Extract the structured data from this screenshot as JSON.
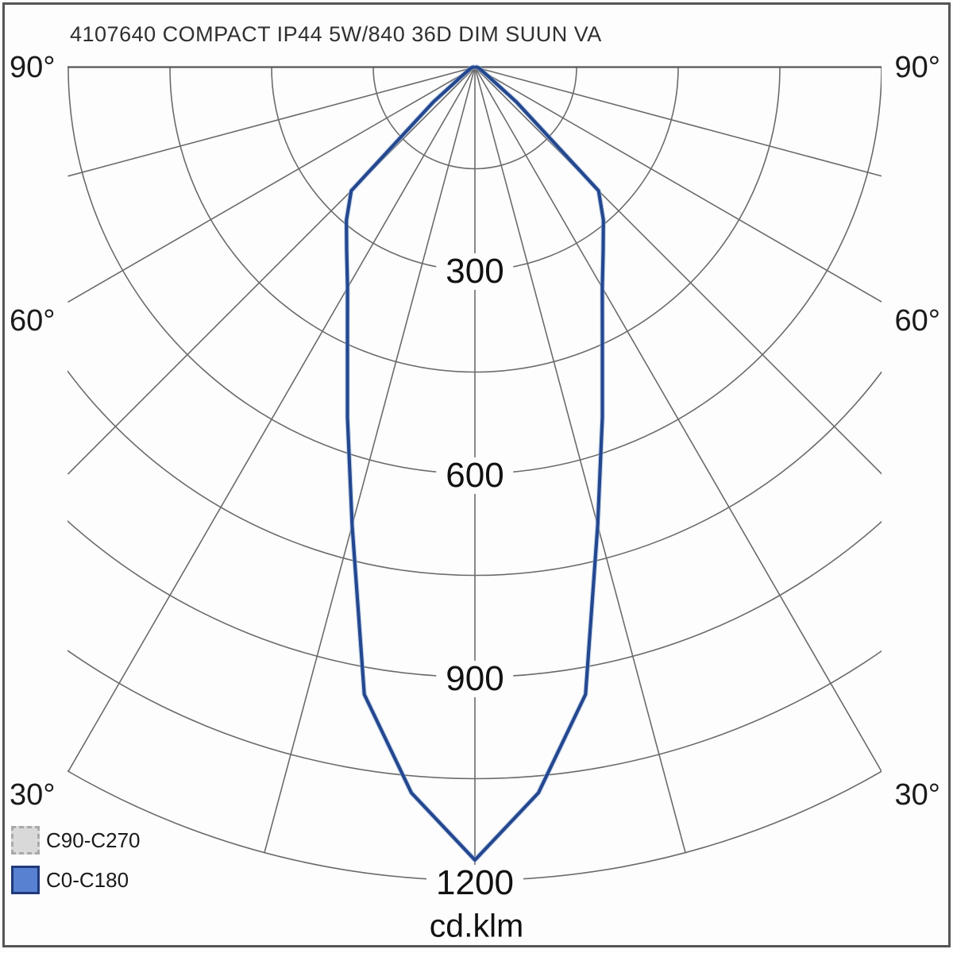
{
  "title": "4107640 COMPACT IP44 5W/840 36D DIM SUUN VA",
  "unit_label": "cd.klm",
  "angle_labels": {
    "left": [
      "90°",
      "60°",
      "30°"
    ],
    "right": [
      "90°",
      "60°",
      "30°"
    ]
  },
  "ring_labels": [
    "300",
    "600",
    "900",
    "1200"
  ],
  "legend": {
    "items": [
      {
        "label": "C90-C270",
        "fill": "#d9d9d9",
        "border": "#a9a9a9",
        "border_style": "dashed"
      },
      {
        "label": "C0-C180",
        "fill": "#5981d1",
        "border": "#20397a",
        "border_style": "solid"
      }
    ]
  },
  "colors": {
    "curve": "#24478f",
    "grid": "#6b6b6b",
    "frame": "#555555"
  },
  "chart_data": {
    "type": "line",
    "subtype": "polar-photometric",
    "title": "4107640 COMPACT IP44 5W/840 36D DIM SUUN VA",
    "radial_unit": "cd.klm",
    "ring_values": [
      150,
      300,
      450,
      600,
      750,
      900,
      1050,
      1200
    ],
    "labeled_rings": [
      300,
      600,
      900,
      1200
    ],
    "radial_angle_step_deg": 15,
    "radial_angles_deg": [
      -90,
      -75,
      -60,
      -45,
      -30,
      -15,
      0,
      15,
      30,
      45,
      60,
      75,
      90
    ],
    "angle_axis_labels_deg": [
      90,
      60,
      30
    ],
    "rlim": [
      0,
      1200
    ],
    "grid": true,
    "legend_position": "bottom-left",
    "series": [
      {
        "name": "C0-C180",
        "color": "#24478f",
        "visible": true,
        "mirror_symmetric": true,
        "angles_deg": [
          0,
          5,
          10,
          15,
          20,
          25,
          30,
          35,
          40,
          45,
          50,
          55,
          60,
          65,
          70,
          75,
          80,
          85,
          90
        ],
        "intensity_cd_klm": [
          1170,
          1075,
          940,
          700,
          550,
          445,
          376,
          330,
          295,
          258,
          80,
          25,
          15,
          10,
          8,
          6,
          5,
          4,
          2
        ]
      },
      {
        "name": "C90-C270",
        "color": "#d9d9d9",
        "visible": false,
        "note": "legend entry only; curve not distinguishable in plot"
      }
    ]
  }
}
